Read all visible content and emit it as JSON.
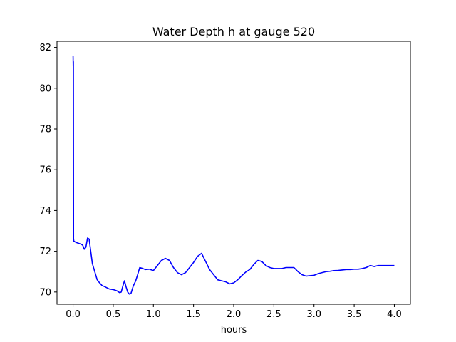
{
  "chart_data": {
    "type": "line",
    "title": "Water Depth h at gauge 520",
    "xlabel": "hours",
    "ylabel": "",
    "xlim": [
      -0.2,
      4.2
    ],
    "ylim": [
      69.4,
      82.3
    ],
    "xticks": [
      0.0,
      0.5,
      1.0,
      1.5,
      2.0,
      2.5,
      3.0,
      3.5,
      4.0
    ],
    "xtick_labels": [
      "0.0",
      "0.5",
      "1.0",
      "1.5",
      "2.0",
      "2.5",
      "3.0",
      "3.5",
      "4.0"
    ],
    "yticks": [
      70,
      72,
      74,
      76,
      78,
      80,
      82
    ],
    "ytick_labels": [
      "70",
      "72",
      "74",
      "76",
      "78",
      "80",
      "82"
    ],
    "grid": false,
    "line_color": "#0000ff",
    "series": [
      {
        "x": [
          0.0,
          0.002,
          0.004,
          0.006,
          0.008,
          0.01,
          0.03,
          0.06,
          0.1,
          0.12,
          0.14,
          0.16,
          0.18,
          0.2,
          0.22,
          0.24,
          0.27,
          0.3,
          0.33,
          0.36,
          0.4,
          0.45,
          0.5,
          0.55,
          0.58,
          0.6,
          0.62,
          0.64,
          0.66,
          0.68,
          0.7,
          0.72,
          0.75,
          0.78,
          0.8,
          0.83,
          0.87,
          0.9,
          0.95,
          0.98,
          1.0,
          1.05,
          1.1,
          1.15,
          1.2,
          1.25,
          1.3,
          1.35,
          1.4,
          1.45,
          1.5,
          1.55,
          1.6,
          1.65,
          1.7,
          1.75,
          1.8,
          1.85,
          1.9,
          1.95,
          2.0,
          2.05,
          2.1,
          2.15,
          2.2,
          2.25,
          2.3,
          2.35,
          2.4,
          2.45,
          2.5,
          2.55,
          2.6,
          2.65,
          2.7,
          2.75,
          2.8,
          2.85,
          2.9,
          2.95,
          3.0,
          3.05,
          3.1,
          3.15,
          3.2,
          3.25,
          3.3,
          3.35,
          3.4,
          3.45,
          3.5,
          3.55,
          3.6,
          3.65,
          3.7,
          3.75,
          3.8,
          3.85,
          3.9,
          3.95,
          4.0
        ],
        "y": [
          81.6,
          81.1,
          81.3,
          72.6,
          72.55,
          72.5,
          72.45,
          72.4,
          72.35,
          72.3,
          72.1,
          72.2,
          72.65,
          72.6,
          72.0,
          71.4,
          71.0,
          70.6,
          70.45,
          70.32,
          70.25,
          70.15,
          70.12,
          70.05,
          69.97,
          70.0,
          70.3,
          70.55,
          70.25,
          70.0,
          69.9,
          69.92,
          70.3,
          70.55,
          70.8,
          71.2,
          71.15,
          71.1,
          71.12,
          71.08,
          71.05,
          71.3,
          71.55,
          71.65,
          71.55,
          71.2,
          70.95,
          70.85,
          70.95,
          71.2,
          71.45,
          71.75,
          71.9,
          71.5,
          71.1,
          70.85,
          70.6,
          70.55,
          70.5,
          70.4,
          70.45,
          70.6,
          70.8,
          70.98,
          71.1,
          71.35,
          71.55,
          71.5,
          71.3,
          71.2,
          71.15,
          71.15,
          71.15,
          71.2,
          71.2,
          71.2,
          71.0,
          70.85,
          70.78,
          70.8,
          70.82,
          70.9,
          70.95,
          71.0,
          71.02,
          71.05,
          71.06,
          71.08,
          71.1,
          71.1,
          71.12,
          71.12,
          71.15,
          71.2,
          71.3,
          71.25,
          71.3,
          71.3,
          71.3,
          71.3,
          71.3
        ]
      }
    ]
  }
}
